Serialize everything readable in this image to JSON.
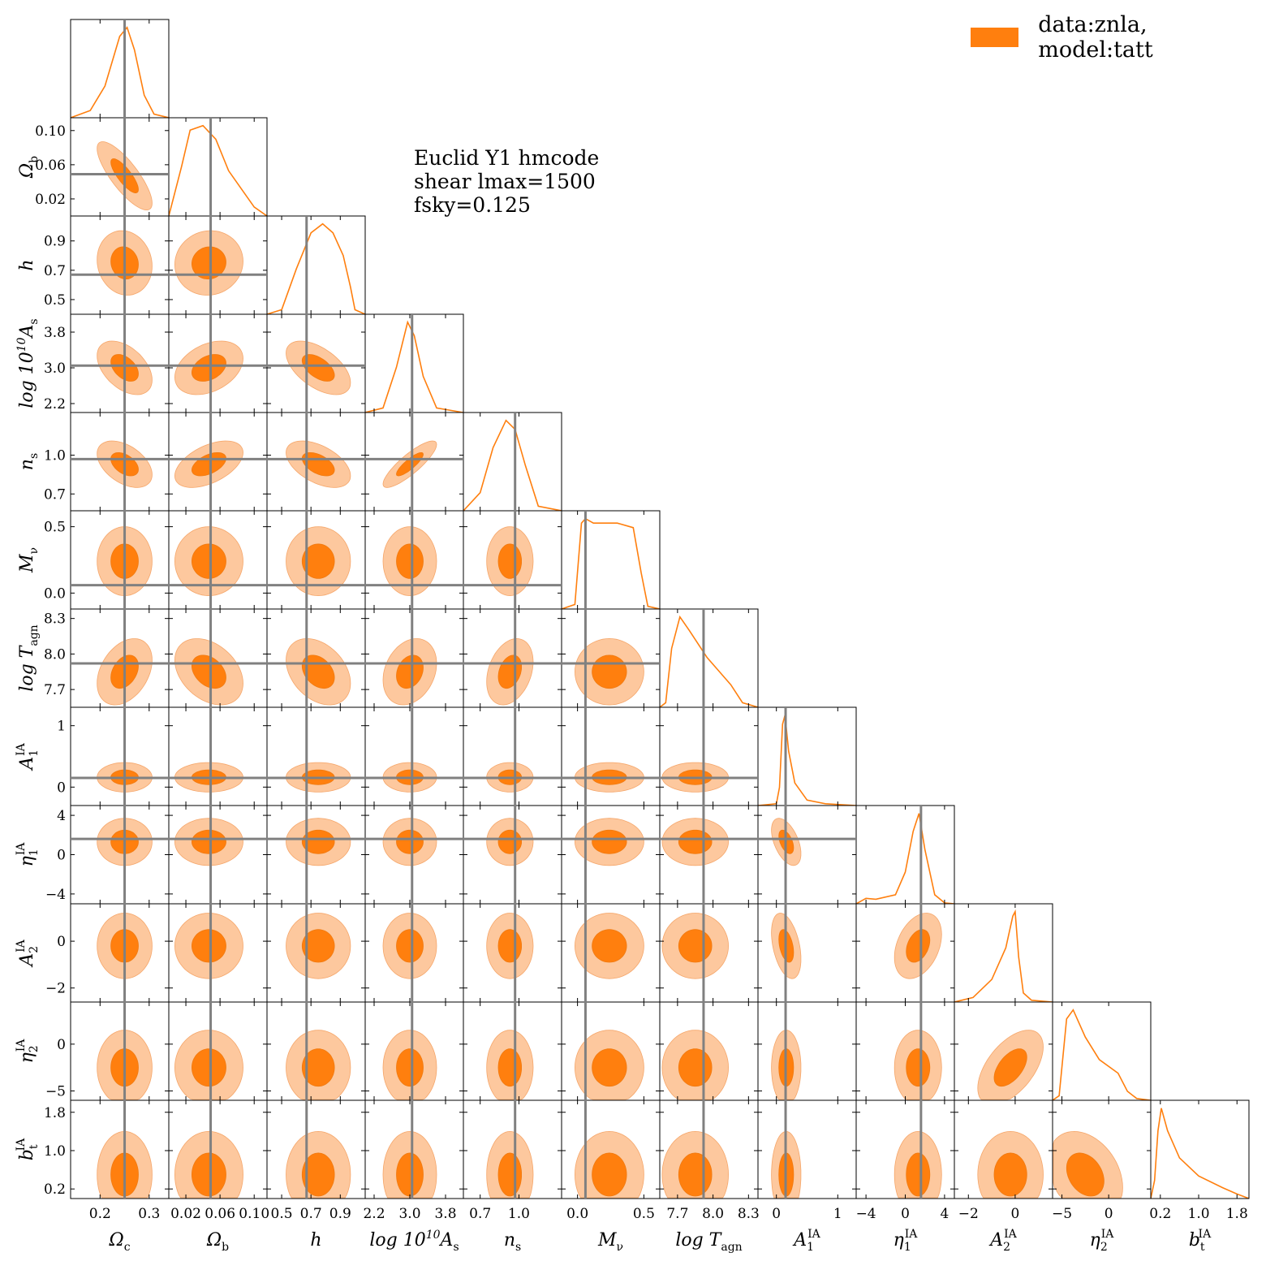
{
  "legend": {
    "label": "data:znla, model:tatt",
    "color": "#ff7f0e"
  },
  "annotation": {
    "lines": [
      "Euclid Y1 hmcode",
      "shear lmax=1500",
      "fsky=0.125"
    ]
  },
  "colors": {
    "line": "#ff7f0e",
    "inner_fill": "#ff7f0e",
    "outer_fill": "#fdc89e",
    "truth_line": "#808080"
  },
  "chart_data": {
    "type": "corner",
    "truth_color": "#808080",
    "params": [
      {
        "label": "Ω_c",
        "label_base": "Ω",
        "label_sub": "c",
        "label_sup": "",
        "range": [
          0.14,
          0.34
        ],
        "ticks": [
          0.2,
          0.3
        ],
        "tick_labels": [
          "0.2",
          "0.3"
        ],
        "truth": 0.25,
        "mean": 0.25,
        "sigma": 0.028,
        "pdf": [
          [
            0.14,
            0
          ],
          [
            0.18,
            0.08
          ],
          [
            0.21,
            0.35
          ],
          [
            0.24,
            0.9
          ],
          [
            0.255,
            1.0
          ],
          [
            0.27,
            0.75
          ],
          [
            0.29,
            0.25
          ],
          [
            0.31,
            0.04
          ],
          [
            0.34,
            0
          ]
        ]
      },
      {
        "label": "Ω_b",
        "label_base": "Ω",
        "label_sub": "b",
        "label_sup": "",
        "range": [
          0.0,
          0.115
        ],
        "ticks": [
          0.02,
          0.06,
          0.1
        ],
        "tick_labels": [
          "0.02",
          "0.06",
          "0.10"
        ],
        "truth": 0.049,
        "mean": 0.047,
        "sigma": 0.02,
        "pdf": [
          [
            0.0,
            0
          ],
          [
            0.015,
            0.55
          ],
          [
            0.025,
            0.95
          ],
          [
            0.04,
            1.0
          ],
          [
            0.055,
            0.85
          ],
          [
            0.07,
            0.5
          ],
          [
            0.085,
            0.3
          ],
          [
            0.1,
            0.1
          ],
          [
            0.115,
            0
          ]
        ]
      },
      {
        "label": "h",
        "label_base": "h",
        "label_sub": "",
        "label_sup": "",
        "range": [
          0.4,
          1.07
        ],
        "ticks": [
          0.5,
          0.7,
          0.9
        ],
        "tick_labels": [
          "0.5",
          "0.7",
          "0.9"
        ],
        "truth": 0.67,
        "mean": 0.75,
        "sigma": 0.11,
        "pdf": [
          [
            0.4,
            0
          ],
          [
            0.5,
            0.05
          ],
          [
            0.6,
            0.5
          ],
          [
            0.7,
            0.9
          ],
          [
            0.78,
            1.0
          ],
          [
            0.85,
            0.9
          ],
          [
            0.92,
            0.65
          ],
          [
            0.97,
            0.3
          ],
          [
            1.0,
            0.05
          ],
          [
            1.07,
            0
          ]
        ]
      },
      {
        "label": "log 10^10 A_s",
        "label_base": "log 10",
        "label_sub": "s",
        "label_sup": "10",
        "label_tail": "A",
        "range": [
          2.0,
          4.2
        ],
        "ticks": [
          2.2,
          3.0,
          3.8
        ],
        "tick_labels": [
          "2.2",
          "3.0",
          "3.8"
        ],
        "truth": 3.05,
        "mean": 3.0,
        "sigma": 0.3,
        "pdf": [
          [
            2.0,
            0
          ],
          [
            2.4,
            0.05
          ],
          [
            2.7,
            0.5
          ],
          [
            2.95,
            1.0
          ],
          [
            3.1,
            0.85
          ],
          [
            3.3,
            0.4
          ],
          [
            3.6,
            0.05
          ],
          [
            4.2,
            0
          ]
        ]
      },
      {
        "label": "n_s",
        "label_base": "n",
        "label_sub": "s",
        "label_sup": "",
        "range": [
          0.57,
          1.33
        ],
        "ticks": [
          0.7,
          1.0
        ],
        "tick_labels": [
          "0.7",
          "1.0"
        ],
        "truth": 0.97,
        "mean": 0.93,
        "sigma": 0.09,
        "pdf": [
          [
            0.57,
            0
          ],
          [
            0.7,
            0.2
          ],
          [
            0.8,
            0.7
          ],
          [
            0.9,
            1.0
          ],
          [
            0.97,
            0.9
          ],
          [
            1.05,
            0.5
          ],
          [
            1.15,
            0.05
          ],
          [
            1.33,
            0
          ]
        ]
      },
      {
        "label": "M_ν",
        "label_base": "M",
        "label_sub": "ν",
        "label_sup": "",
        "range": [
          -0.12,
          0.62
        ],
        "ticks": [
          0.0,
          0.5
        ],
        "tick_labels": [
          "0.0",
          "0.5"
        ],
        "truth": 0.06,
        "mean": 0.24,
        "sigma": 0.13,
        "pdf": [
          [
            -0.12,
            0
          ],
          [
            -0.02,
            0.05
          ],
          [
            0.03,
            0.95
          ],
          [
            0.06,
            1.0
          ],
          [
            0.12,
            0.95
          ],
          [
            0.3,
            0.95
          ],
          [
            0.42,
            0.9
          ],
          [
            0.48,
            0.4
          ],
          [
            0.53,
            0.03
          ],
          [
            0.62,
            0
          ]
        ]
      },
      {
        "label": "log T_agn",
        "label_base": "log T",
        "label_sub": "agn",
        "label_sup": "",
        "range": [
          7.55,
          8.38
        ],
        "ticks": [
          7.7,
          8.0,
          8.3
        ],
        "tick_labels": [
          "7.7",
          "8.0",
          "8.3"
        ],
        "truth": 7.92,
        "mean": 7.85,
        "sigma": 0.14,
        "pdf": [
          [
            7.55,
            0
          ],
          [
            7.6,
            0.05
          ],
          [
            7.65,
            0.65
          ],
          [
            7.72,
            1.0
          ],
          [
            7.8,
            0.85
          ],
          [
            7.95,
            0.55
          ],
          [
            8.15,
            0.25
          ],
          [
            8.25,
            0.05
          ],
          [
            8.38,
            0
          ]
        ]
      },
      {
        "label": "A_1^IA",
        "label_base": "A",
        "label_sub": "1",
        "label_sup": "IA",
        "range": [
          -0.3,
          1.3
        ],
        "ticks": [
          0,
          1
        ],
        "tick_labels": [
          "0",
          "1"
        ],
        "truth": 0.15,
        "mean": 0.16,
        "sigma": 0.12,
        "pdf": [
          [
            -0.3,
            0
          ],
          [
            0.0,
            0.02
          ],
          [
            0.05,
            0.2
          ],
          [
            0.1,
            0.9
          ],
          [
            0.14,
            1.0
          ],
          [
            0.2,
            0.6
          ],
          [
            0.3,
            0.25
          ],
          [
            0.5,
            0.06
          ],
          [
            0.8,
            0.02
          ],
          [
            1.3,
            0
          ]
        ]
      },
      {
        "label": "η_1^IA",
        "label_base": "η",
        "label_sub": "1",
        "label_sup": "IA",
        "range": [
          -5.0,
          5.0
        ],
        "ticks": [
          -4,
          0,
          4
        ],
        "tick_labels": [
          "−4",
          "0",
          "4"
        ],
        "truth": 1.6,
        "mean": 1.3,
        "sigma": 1.2,
        "pdf": [
          [
            -5.0,
            0
          ],
          [
            -4.0,
            0.06
          ],
          [
            -3.0,
            0.05
          ],
          [
            -1.0,
            0.1
          ],
          [
            0.0,
            0.35
          ],
          [
            0.8,
            0.8
          ],
          [
            1.4,
            1.0
          ],
          [
            2.0,
            0.6
          ],
          [
            3.0,
            0.1
          ],
          [
            4.0,
            0.01
          ],
          [
            5.0,
            0
          ]
        ]
      },
      {
        "label": "A_2^IA",
        "label_base": "A",
        "label_sub": "2",
        "label_sup": "IA",
        "range": [
          -2.6,
          1.6
        ],
        "ticks": [
          -2,
          0
        ],
        "tick_labels": [
          "−2",
          "0"
        ],
        "truth": 0.0,
        "mean": -0.2,
        "sigma": 0.7,
        "pdf": [
          [
            -2.6,
            0
          ],
          [
            -1.8,
            0.05
          ],
          [
            -1.0,
            0.25
          ],
          [
            -0.4,
            0.6
          ],
          [
            -0.1,
            0.95
          ],
          [
            0.0,
            1.0
          ],
          [
            0.15,
            0.5
          ],
          [
            0.35,
            0.1
          ],
          [
            0.7,
            0.02
          ],
          [
            1.6,
            0
          ]
        ]
      },
      {
        "label": "η_2^IA",
        "label_base": "η",
        "label_sub": "2",
        "label_sup": "IA",
        "range": [
          -6.0,
          4.5
        ],
        "ticks": [
          -5,
          0
        ],
        "tick_labels": [
          "−5",
          "0"
        ],
        "truth": -2.5,
        "mean": -2.5,
        "sigma": 2.0,
        "pdf": [
          [
            -6.0,
            0
          ],
          [
            -5.3,
            0.05
          ],
          [
            -4.5,
            0.9
          ],
          [
            -3.8,
            1.0
          ],
          [
            -2.5,
            0.7
          ],
          [
            -1.0,
            0.45
          ],
          [
            1.0,
            0.3
          ],
          [
            2.0,
            0.1
          ],
          [
            3.0,
            0.02
          ],
          [
            4.5,
            0
          ]
        ]
      },
      {
        "label": "b_t^IA",
        "label_base": "b",
        "label_sub": "t",
        "label_sup": "IA",
        "range": [
          0.0,
          2.05
        ],
        "ticks": [
          0.2,
          1.0,
          1.8
        ],
        "tick_labels": [
          "0.2",
          "1.0",
          "1.8"
        ],
        "truth": null,
        "mean": 0.5,
        "sigma": 0.45,
        "pdf": [
          [
            0.0,
            0
          ],
          [
            0.08,
            0.2
          ],
          [
            0.15,
            0.75
          ],
          [
            0.22,
            1.0
          ],
          [
            0.35,
            0.75
          ],
          [
            0.6,
            0.45
          ],
          [
            1.0,
            0.25
          ],
          [
            1.5,
            0.12
          ],
          [
            1.8,
            0.05
          ],
          [
            2.05,
            0
          ]
        ]
      }
    ],
    "truth_column_lines": [
      0,
      1,
      2,
      3,
      4,
      5,
      6,
      7,
      8
    ],
    "truth_row_lines": [
      1,
      2,
      3,
      4,
      5,
      6,
      7,
      8
    ]
  }
}
